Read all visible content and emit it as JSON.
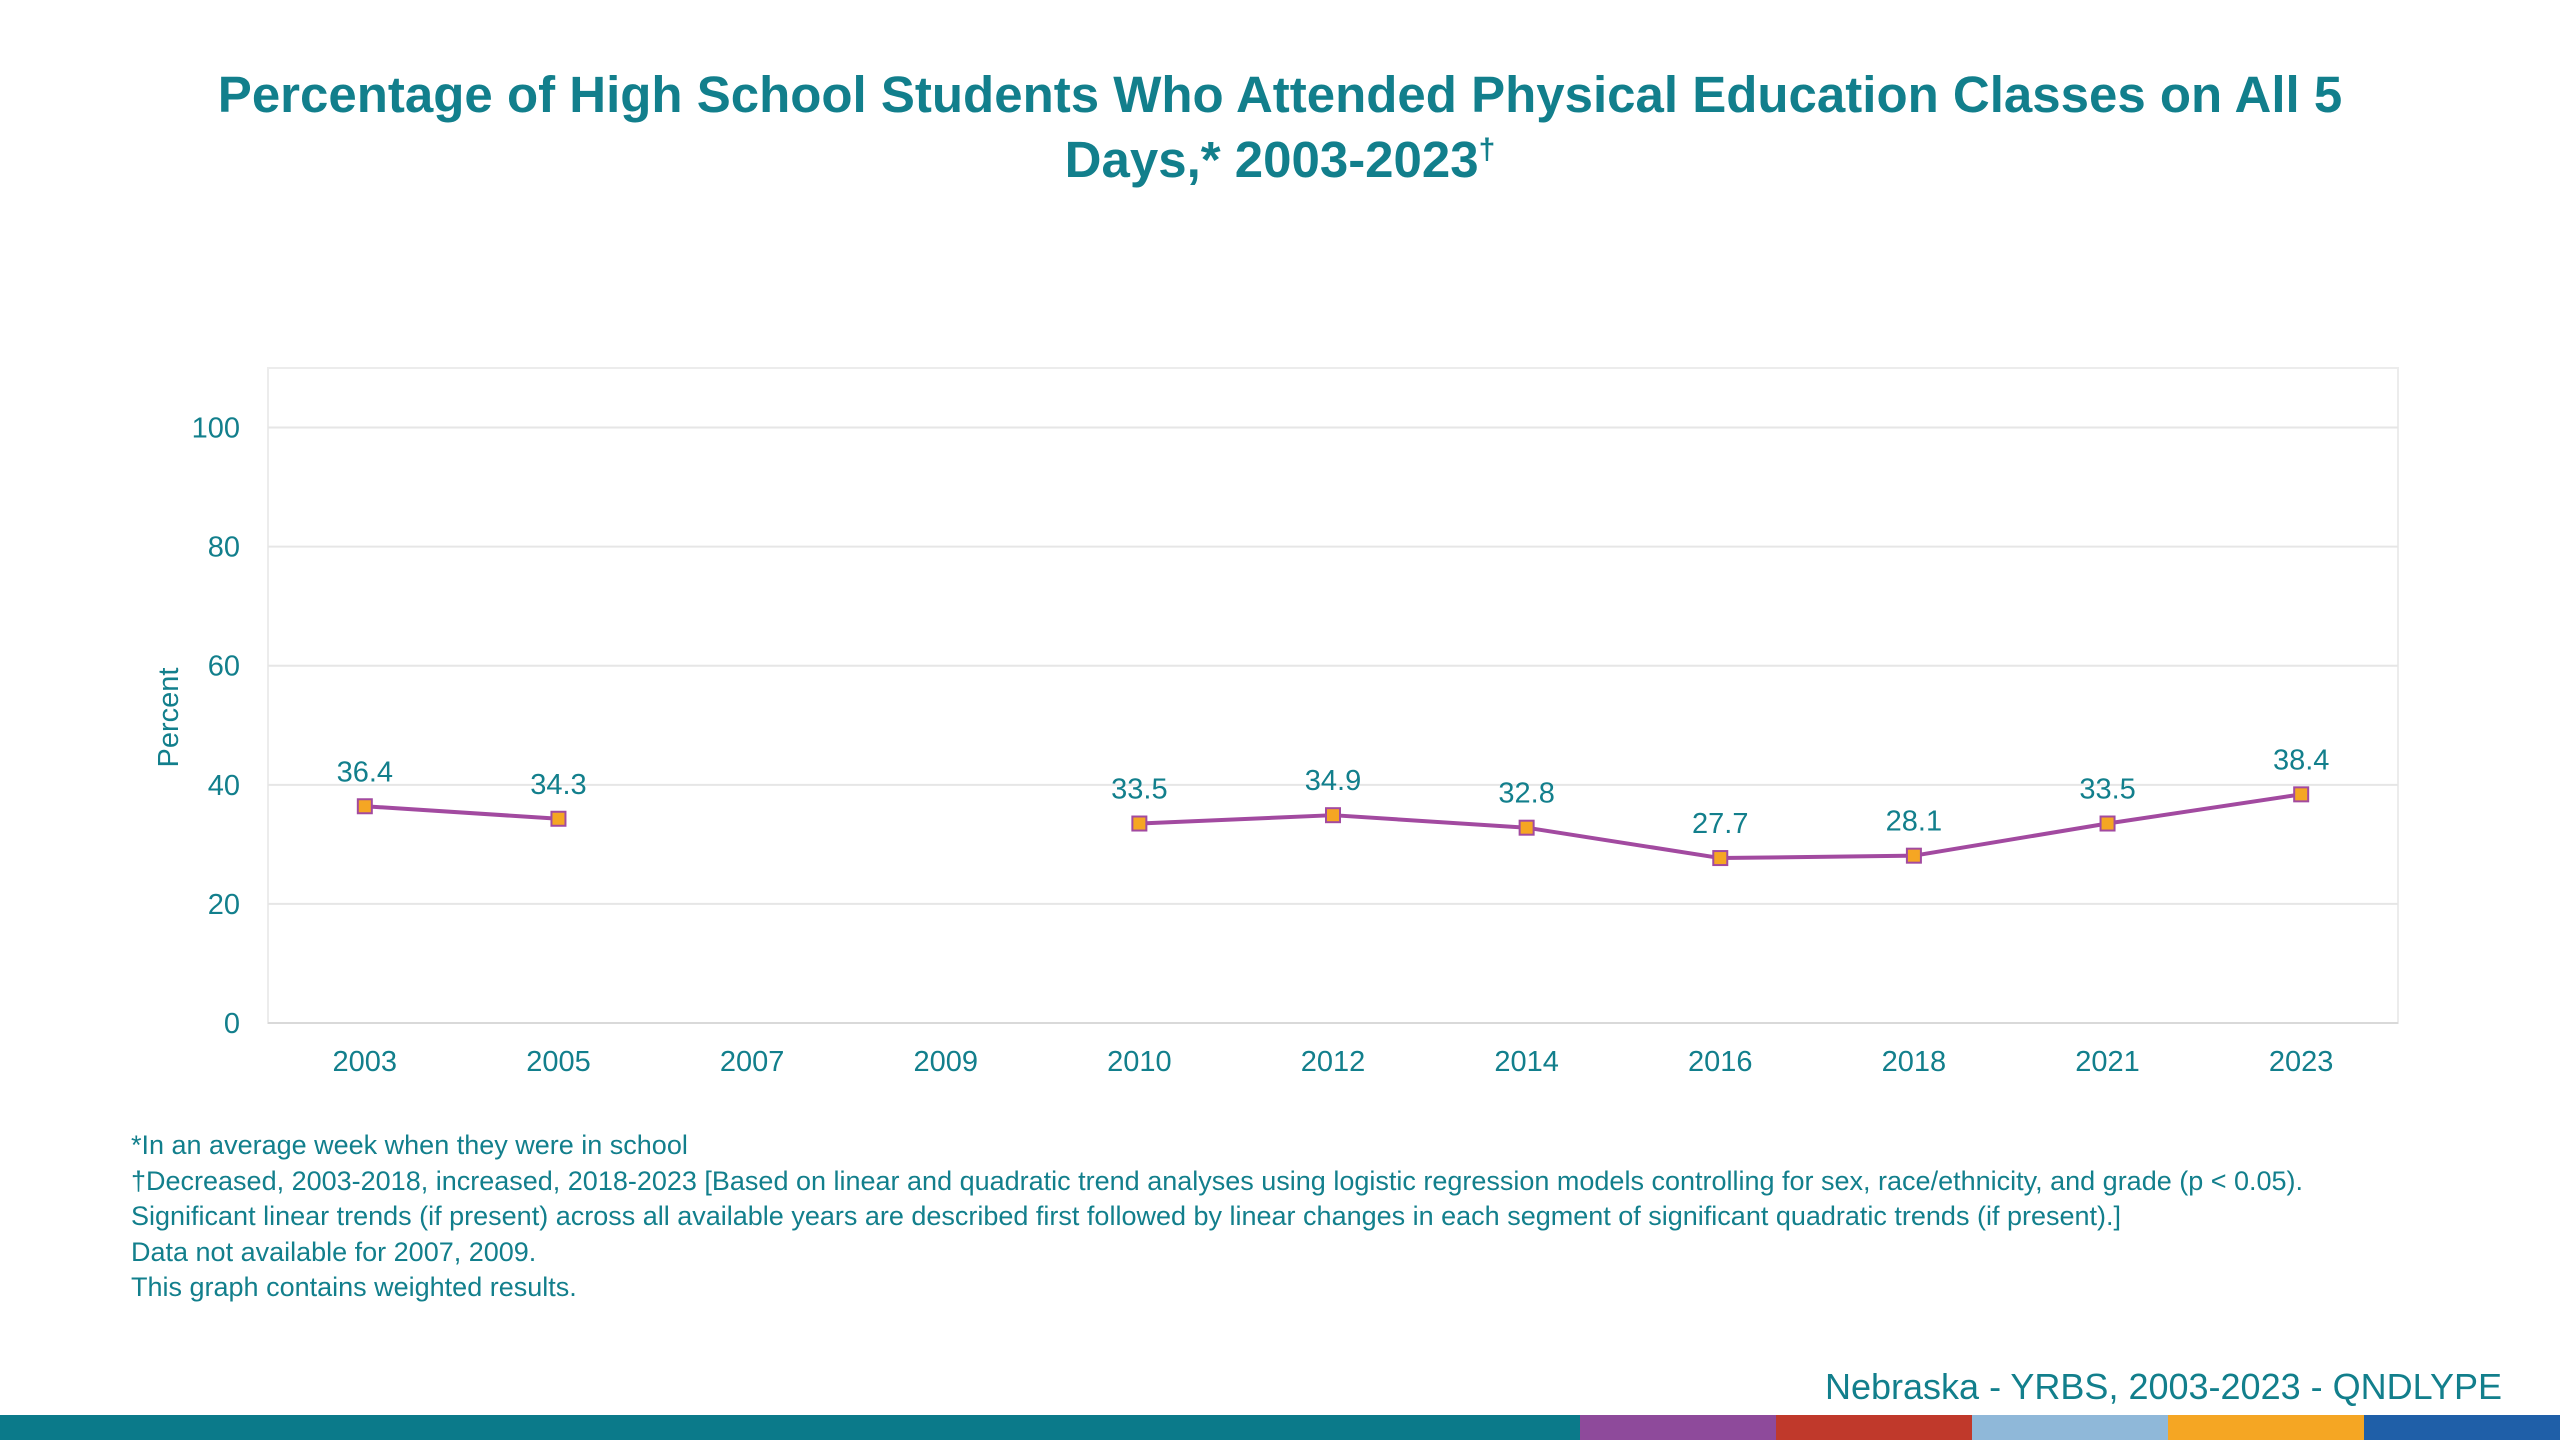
{
  "chart_data": {
    "type": "line",
    "title": "Percentage of High School Students Who Attended Physical Education Classes on All 5 Days,* 2003-2023",
    "title_mark": "†",
    "ylabel": "Percent",
    "xlabel": "",
    "ylim": [
      0,
      110
    ],
    "yticks": [
      0,
      20,
      40,
      60,
      80,
      100
    ],
    "categories": [
      "2003",
      "2005",
      "2007",
      "2009",
      "2010",
      "2012",
      "2014",
      "2016",
      "2018",
      "2021",
      "2023"
    ],
    "values": [
      36.4,
      34.3,
      null,
      null,
      33.5,
      34.9,
      32.8,
      27.7,
      28.1,
      33.5,
      38.4
    ],
    "value_labels": [
      "36.4",
      "34.3",
      "",
      "",
      "33.5",
      "34.9",
      "32.8",
      "27.7",
      "28.1",
      "33.5",
      "38.4"
    ],
    "grid": true,
    "legend": "none",
    "line_color": "#a24aa0",
    "marker_color": "#f5a623",
    "marker_edge": "#a24aa0",
    "text_color": "#127f8c"
  },
  "footnotes": [
    "*In an average week when they were in school",
    "†Decreased, 2003-2018, increased, 2018-2023 [Based on linear and quadratic trend analyses using logistic regression models controlling for sex, race/ethnicity, and grade (p < 0.05). Significant linear trends (if present) across all available years are described first followed by linear changes in each segment of significant quadratic trends (if present).]",
    "Data not available for 2007, 2009.",
    "This graph contains weighted results."
  ],
  "source": "Nebraska - YRBS, 2003-2023 - QNDLYPE",
  "bottom_bar_colors": [
    "#0b7a8a",
    "#8e4a9b",
    "#c0392b",
    "#8fb8d9",
    "#f5a623",
    "#1f5fa8"
  ]
}
